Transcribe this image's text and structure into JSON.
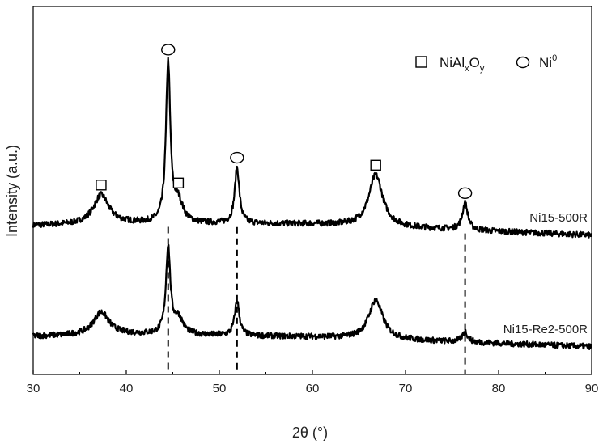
{
  "chart_data": {
    "type": "line",
    "xlabel": "2θ  (°)",
    "ylabel": "Intensity (a.u.)",
    "xlim": [
      30,
      90
    ],
    "xticks": [
      "30",
      "40",
      "50",
      "60",
      "70",
      "80",
      "90"
    ],
    "y_ticks_shown": false,
    "legend": {
      "placement": "top-right",
      "items": [
        {
          "marker": "square",
          "text": "NiAl",
          "sub1": "x",
          "mid": "O",
          "sub2": "y"
        },
        {
          "marker": "circle",
          "text": "Ni",
          "sup": "0"
        }
      ]
    },
    "series": [
      {
        "name": "Ni15-500R",
        "baseline": [
          [
            30,
            0.75
          ],
          [
            40,
            0.85
          ],
          [
            60,
            0.82
          ],
          [
            90,
            0.28
          ]
        ],
        "peaks": [
          {
            "x": 37.3,
            "h": 1.4,
            "w": 1.0
          },
          {
            "x": 44.5,
            "h": 7.7,
            "w": 0.28
          },
          {
            "x": 45.6,
            "h": 1.0,
            "w": 0.6
          },
          {
            "x": 51.9,
            "h": 2.7,
            "w": 0.3
          },
          {
            "x": 66.8,
            "h": 2.5,
            "w": 0.9
          },
          {
            "x": 76.4,
            "h": 1.3,
            "w": 0.35
          }
        ]
      },
      {
        "name": "Ni15-Re2-500R",
        "baseline": [
          [
            30,
            0.75
          ],
          [
            40,
            0.85
          ],
          [
            60,
            0.72
          ],
          [
            90,
            0.25
          ]
        ],
        "peaks": [
          {
            "x": 37.3,
            "h": 1.1,
            "w": 1.0
          },
          {
            "x": 44.5,
            "h": 4.2,
            "w": 0.28
          },
          {
            "x": 45.6,
            "h": 0.8,
            "w": 0.6
          },
          {
            "x": 51.9,
            "h": 1.7,
            "w": 0.3
          },
          {
            "x": 66.8,
            "h": 1.9,
            "w": 0.9
          },
          {
            "x": 76.4,
            "h": 0.5,
            "w": 0.35
          }
        ]
      }
    ],
    "peak_markers": [
      {
        "x": 37.3,
        "type": "square",
        "phase": "NiAlxOy"
      },
      {
        "x": 44.5,
        "type": "circle",
        "phase": "Ni0"
      },
      {
        "x": 45.6,
        "type": "square",
        "phase": "NiAlxOy"
      },
      {
        "x": 51.9,
        "type": "circle",
        "phase": "Ni0"
      },
      {
        "x": 66.8,
        "type": "square",
        "phase": "NiAlxOy"
      },
      {
        "x": 76.4,
        "type": "circle",
        "phase": "Ni0"
      }
    ],
    "reference_lines": [
      44.5,
      51.9,
      76.4
    ]
  }
}
